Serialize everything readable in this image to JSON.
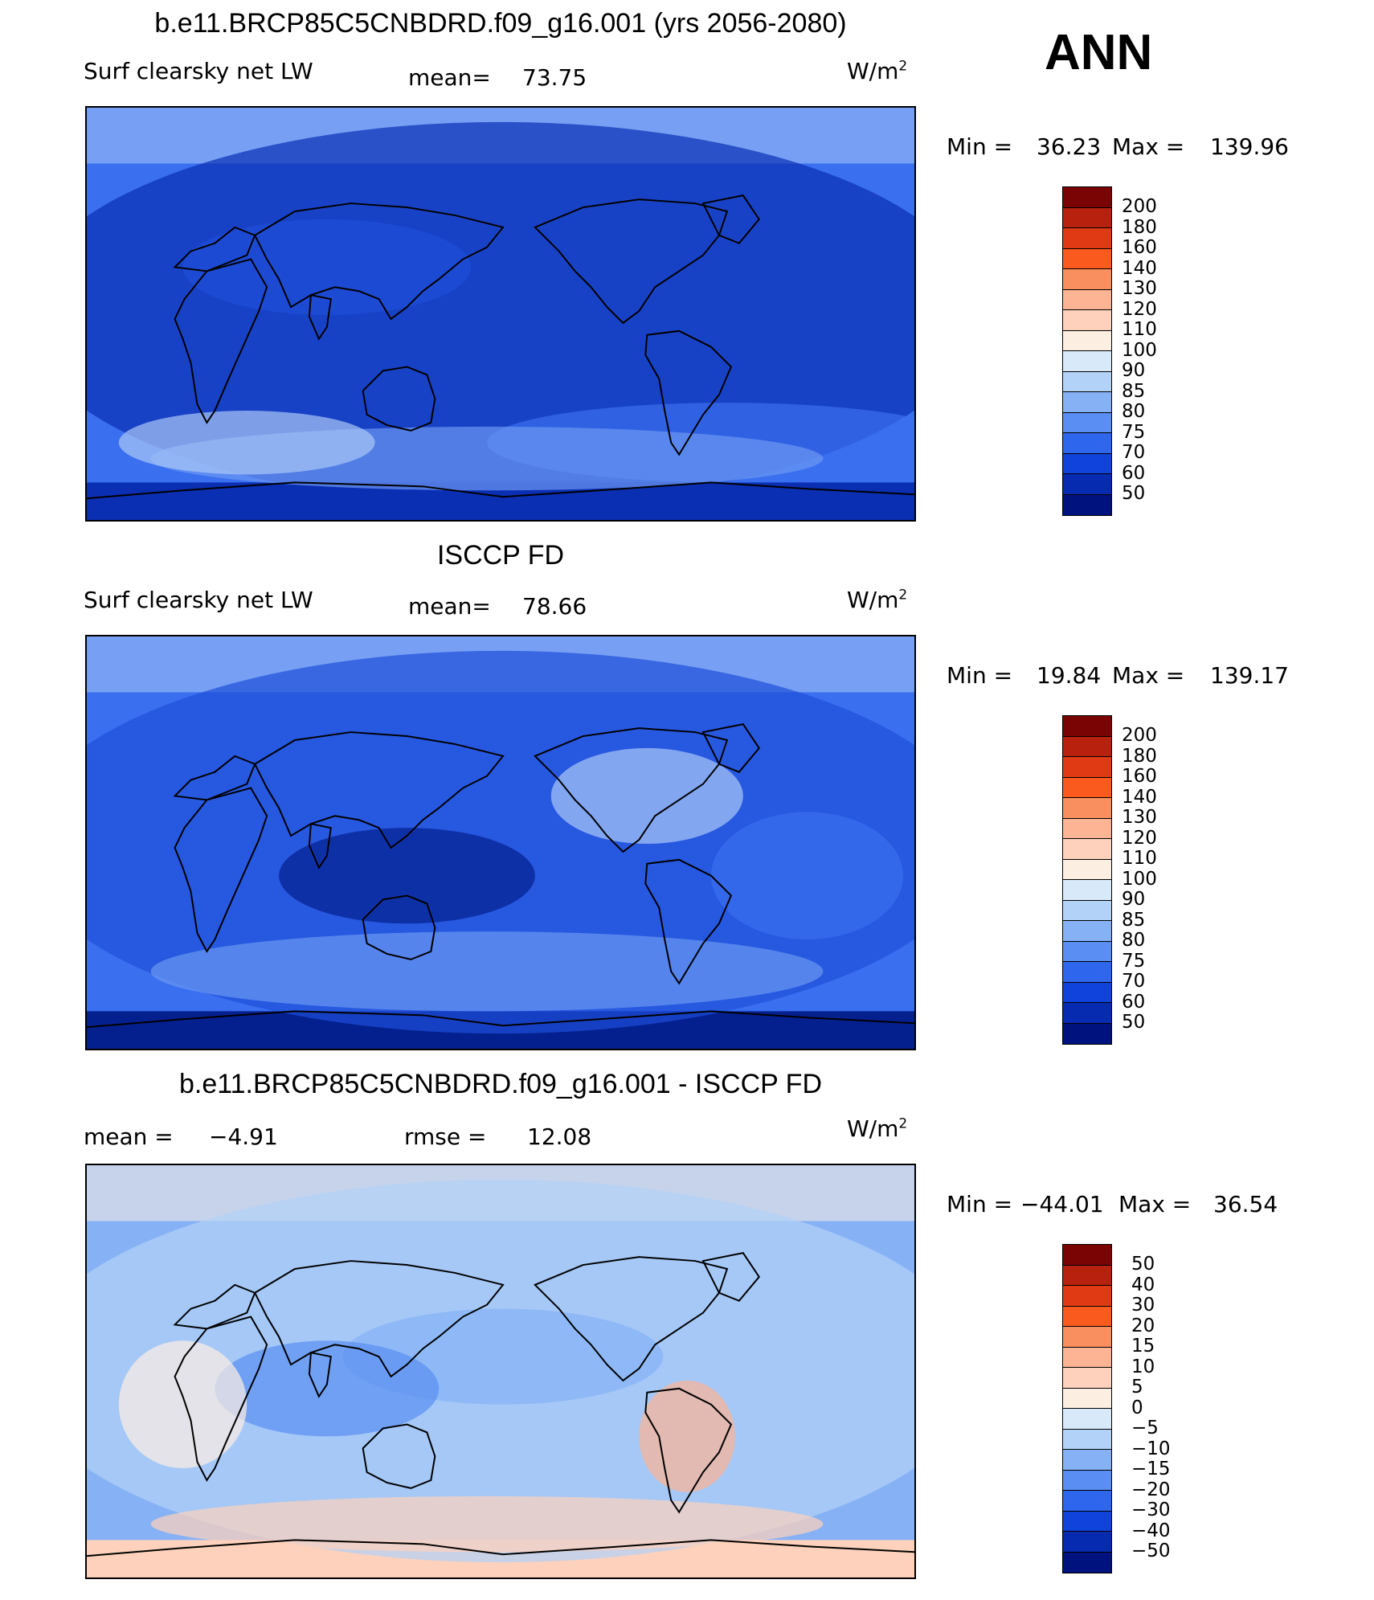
{
  "season": "ANN",
  "panels": [
    {
      "title": "b.e11.BRCP85C5CNBDRD.f09_g16.001 (yrs 2056-2080)",
      "left_label": "Surf clearsky net LW",
      "stat_label": "mean=",
      "stat_value": "73.75",
      "units": "W/m",
      "units_sup": "2",
      "min_label": "Min  =",
      "min_value": "36.23",
      "max_label": "Max  =",
      "max_value": "139.96",
      "colorbar_labels": [
        "200",
        "180",
        "160",
        "140",
        "130",
        "120",
        "110",
        "100",
        "90",
        "85",
        "80",
        "75",
        "70",
        "60",
        "50"
      ],
      "colorbar_colors": [
        "#7a0403",
        "#b8210e",
        "#e03a14",
        "#fb5a1f",
        "#f98f5e",
        "#fcb494",
        "#fdd1bb",
        "#fdeee2",
        "#d8eafa",
        "#b2d2f8",
        "#86b2f5",
        "#5a8ef2",
        "#2f66ee",
        "#1043dc",
        "#062bb1",
        "#00127e"
      ],
      "map_palette": [
        "#0a2fb3",
        "#1e4fd8",
        "#3a6ff0",
        "#6b97f2",
        "#a9c8f7",
        "#dce9fa",
        "#f8e4d5",
        "#f7b498"
      ]
    },
    {
      "title": "ISCCP FD",
      "left_label": "Surf clearsky net LW",
      "stat_label": "mean=",
      "stat_value": "78.66",
      "units": "W/m",
      "units_sup": "2",
      "min_label": "Min  =",
      "min_value": "19.84",
      "max_label": "Max  =",
      "max_value": "139.17",
      "colorbar_labels": [
        "200",
        "180",
        "160",
        "140",
        "130",
        "120",
        "110",
        "100",
        "90",
        "85",
        "80",
        "75",
        "70",
        "60",
        "50"
      ],
      "colorbar_colors": [
        "#7a0403",
        "#b8210e",
        "#e03a14",
        "#fb5a1f",
        "#f98f5e",
        "#fcb494",
        "#fdd1bb",
        "#fdeee2",
        "#d8eafa",
        "#b2d2f8",
        "#86b2f5",
        "#5a8ef2",
        "#2f66ee",
        "#1043dc",
        "#062bb1",
        "#00127e"
      ],
      "map_palette": [
        "#04208f",
        "#1e4fd8",
        "#3a6ff0",
        "#6b97f2",
        "#a9c8f7",
        "#dce9fa",
        "#f8e4d5",
        "#f7b498"
      ]
    },
    {
      "title": "b.e11.BRCP85C5CNBDRD.f09_g16.001 - ISCCP FD",
      "left_label": "mean =",
      "left_value": "−4.91",
      "stat_label": "rmse =",
      "stat_value": "12.08",
      "units": "W/m",
      "units_sup": "2",
      "min_label": "Min  =",
      "min_value": "−44.01",
      "max_label": "Max  =",
      "max_value": "36.54",
      "colorbar_labels": [
        "50",
        "40",
        "30",
        "20",
        "15",
        "10",
        "5",
        "0",
        "−5",
        "−10",
        "−15",
        "−20",
        "−30",
        "−40",
        "−50"
      ],
      "colorbar_colors": [
        "#7a0403",
        "#b8210e",
        "#e03a14",
        "#fb5a1f",
        "#f98f5e",
        "#fcb494",
        "#fdd1bb",
        "#fdeee2",
        "#d8eafa",
        "#b2d2f8",
        "#86b2f5",
        "#5a8ef2",
        "#2f66ee",
        "#1043dc",
        "#062bb1",
        "#00127e"
      ],
      "map_palette": [
        "#2f66ee",
        "#5a8ef2",
        "#86b2f5",
        "#b2d2f8",
        "#fdeee2",
        "#fdd1bb",
        "#fcb494",
        "#f98f5e"
      ]
    }
  ]
}
